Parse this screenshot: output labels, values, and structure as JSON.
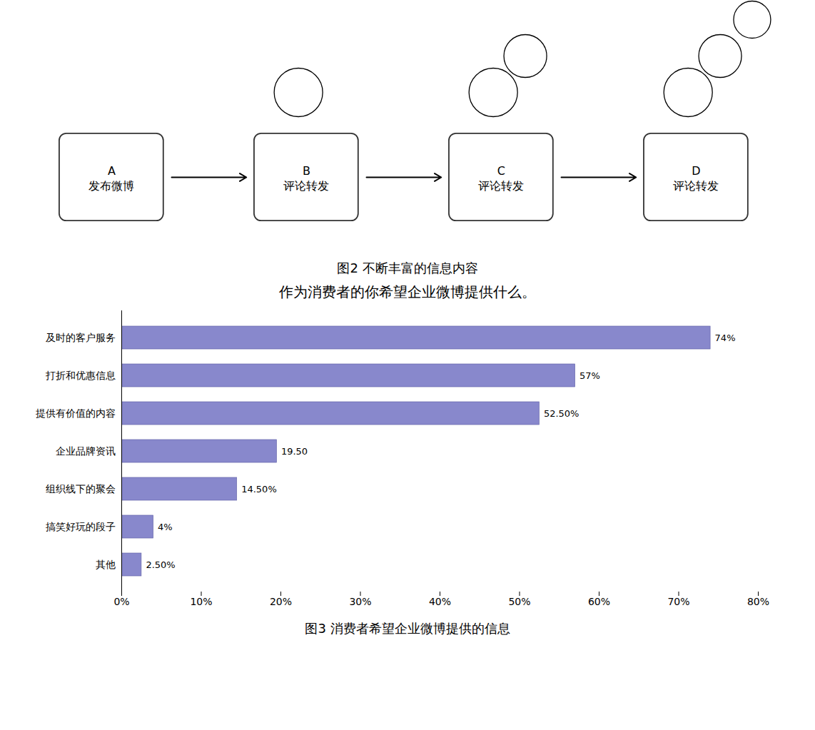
{
  "chart_data": [
    {
      "type": "flow",
      "caption": "图2   不断丰富的信息内容",
      "categories": [
        "A\n发布微博",
        "B\n评论转发",
        "C\n评论转发",
        "D\n评论转发"
      ],
      "values": [
        0,
        1,
        2,
        3
      ]
    },
    {
      "type": "bar",
      "orientation": "horizontal",
      "title": "作为消费者的你希望企业微博提供什么。",
      "caption": "图3   消费者希望企业微博提供的信息",
      "categories": [
        "其他",
        "搞笑好玩的段子",
        "组织线下的聚会",
        "企业品牌资讯",
        "提供有价值的内容",
        "打折和优惠信息",
        "及时的客户服务"
      ],
      "values": [
        2.5,
        4.0,
        14.5,
        19.5,
        52.5,
        57.0,
        74.0
      ],
      "value_labels": [
        "2.50%",
        "4%",
        "14.50%",
        "19.50",
        "52.50%",
        "57%",
        "74%"
      ],
      "data_labels": true,
      "color": "#8888cc",
      "grid": false,
      "xlim": [
        0,
        80
      ],
      "xticks": [
        {
          "value": 0,
          "label": "0%"
        },
        {
          "value": 10,
          "label": "10%"
        },
        {
          "value": 20,
          "label": "20%"
        },
        {
          "value": 30,
          "label": "30%"
        },
        {
          "value": 40,
          "label": "40%"
        },
        {
          "value": 50,
          "label": "50%"
        },
        {
          "value": 60,
          "label": "60%"
        },
        {
          "value": 70,
          "label": "70%"
        },
        {
          "value": 80,
          "label": "80%"
        }
      ]
    }
  ]
}
